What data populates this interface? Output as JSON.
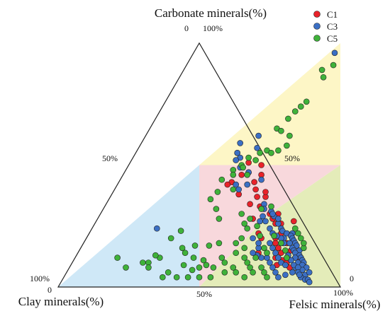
{
  "chart_data": {
    "type": "scatter",
    "subtype": "ternary",
    "axes": {
      "top": {
        "label": "Carbonate minerals(%)",
        "max_tick": "100%",
        "min_tick": "0"
      },
      "left": {
        "label": "Clay minerals(%)",
        "max_tick": "100%",
        "min_tick": "0"
      },
      "right": {
        "label": "Felsic minerals(%)",
        "max_tick": "100%",
        "min_tick": "0"
      }
    },
    "edge_ticks": {
      "left_mid": "50%",
      "right_mid": "50%",
      "bottom_mid": "50%"
    },
    "regions": [
      {
        "id": "carbonate-zone",
        "color": "#fdf6c6"
      },
      {
        "id": "clay-zone",
        "color": "#cfe8f7"
      },
      {
        "id": "mixed-zone",
        "color": "#f8d8dc"
      },
      {
        "id": "felsic-zone",
        "color": "#e4ecb9"
      }
    ],
    "legend": {
      "placement": "top-right",
      "entries": [
        {
          "name": "C1",
          "color": "#e8222a"
        },
        {
          "name": "C3",
          "color": "#3b6fc4"
        },
        {
          "name": "C5",
          "color": "#3fb23a"
        }
      ]
    },
    "grid": false,
    "value_note": "each point: [felsic %, carbonate %] (clay = 100 - felsic - carbonate)",
    "series": [
      {
        "name": "C1",
        "points": [
          [
            42,
            51
          ],
          [
            47,
            50
          ],
          [
            48,
            43
          ],
          [
            40,
            43
          ],
          [
            39,
            42
          ],
          [
            45,
            38
          ],
          [
            50,
            40
          ],
          [
            52,
            37
          ],
          [
            51,
            34
          ],
          [
            55,
            37
          ],
          [
            60,
            30
          ],
          [
            63,
            30
          ],
          [
            62,
            28
          ],
          [
            64,
            26
          ],
          [
            55,
            28
          ],
          [
            66,
            26
          ],
          [
            70,
            27
          ],
          [
            73,
            20
          ],
          [
            72,
            18
          ],
          [
            75,
            15
          ],
          [
            76,
            17
          ],
          [
            78,
            13
          ],
          [
            72,
            14
          ],
          [
            74,
            11
          ],
          [
            79,
            12
          ],
          [
            76,
            10
          ],
          [
            80,
            12
          ],
          [
            67,
            20
          ],
          [
            44,
            47
          ],
          [
            42,
            46
          ],
          [
            60,
            22
          ],
          [
            62,
            20
          ],
          [
            68,
            22
          ],
          [
            55,
            33
          ],
          [
            54,
            39
          ],
          [
            73,
            9
          ],
          [
            70,
            16
          ],
          [
            36,
            55
          ],
          [
            68,
            18
          ],
          [
            78,
            8
          ],
          [
            49,
            46
          ],
          [
            64,
            14
          ],
          [
            71,
            12
          ]
        ]
      },
      {
        "name": "C3",
        "points": [
          [
            50,
            96
          ],
          [
            40,
            62
          ],
          [
            35,
            59
          ],
          [
            42,
            57
          ],
          [
            38,
            53
          ],
          [
            40,
            49
          ],
          [
            44,
            47
          ],
          [
            42,
            42
          ],
          [
            50,
            44
          ],
          [
            56,
            34
          ],
          [
            57,
            32
          ],
          [
            60,
            31
          ],
          [
            62,
            29
          ],
          [
            58,
            27
          ],
          [
            65,
            26
          ],
          [
            67,
            24
          ],
          [
            68,
            23
          ],
          [
            70,
            22
          ],
          [
            72,
            22
          ],
          [
            72,
            21
          ],
          [
            73,
            20
          ],
          [
            74,
            19
          ],
          [
            75,
            18
          ],
          [
            76,
            17
          ],
          [
            75,
            16
          ],
          [
            76,
            15
          ],
          [
            78,
            15
          ],
          [
            77,
            14
          ],
          [
            79,
            13
          ],
          [
            80,
            12
          ],
          [
            78,
            12
          ],
          [
            81,
            11
          ],
          [
            82,
            10
          ],
          [
            80,
            10
          ],
          [
            82,
            9
          ],
          [
            84,
            8
          ],
          [
            83,
            7
          ],
          [
            85,
            5
          ],
          [
            84,
            4
          ],
          [
            86,
            3
          ],
          [
            87,
            3
          ],
          [
            88,
            2
          ],
          [
            86,
            6
          ],
          [
            80,
            8
          ],
          [
            78,
            5
          ],
          [
            76,
            4
          ],
          [
            74,
            6
          ],
          [
            72,
            8
          ],
          [
            70,
            10
          ],
          [
            68,
            12
          ],
          [
            66,
            12
          ],
          [
            64,
            13
          ],
          [
            62,
            14
          ],
          [
            63,
            16
          ],
          [
            66,
            18
          ],
          [
            68,
            16
          ],
          [
            70,
            14
          ],
          [
            72,
            12
          ],
          [
            74,
            10
          ],
          [
            76,
            9
          ],
          [
            70,
            20
          ],
          [
            71,
            18
          ],
          [
            69,
            20
          ],
          [
            73,
            18
          ],
          [
            75,
            13
          ],
          [
            77,
            11
          ],
          [
            79,
            9
          ],
          [
            81,
            8
          ],
          [
            80,
            6
          ],
          [
            82,
            6
          ],
          [
            83,
            5
          ],
          [
            44,
            40
          ],
          [
            46,
            42
          ],
          [
            37,
            52
          ],
          [
            36,
            55
          ],
          [
            64,
            28
          ],
          [
            61,
            30
          ],
          [
            58,
            29
          ],
          [
            60,
            27
          ],
          [
            65,
            22
          ],
          [
            67,
            21
          ],
          [
            23,
            24
          ],
          [
            62,
            18
          ],
          [
            59,
            20
          ],
          [
            63,
            24
          ]
        ]
      },
      {
        "name": "C5",
        "points": [
          [
            52,
            91
          ],
          [
            49,
            89
          ],
          [
            51,
            86
          ],
          [
            50,
            76
          ],
          [
            49,
            74
          ],
          [
            48,
            72
          ],
          [
            47,
            69
          ],
          [
            45,
            65
          ],
          [
            47,
            64
          ],
          [
            51,
            62
          ],
          [
            52,
            58
          ],
          [
            50,
            56
          ],
          [
            46,
            56
          ],
          [
            44,
            55
          ],
          [
            48,
            55
          ],
          [
            41,
            53
          ],
          [
            44,
            52
          ],
          [
            40,
            50
          ],
          [
            38,
            48
          ],
          [
            44,
            46
          ],
          [
            42,
            40
          ],
          [
            36,
            44
          ],
          [
            36,
            36
          ],
          [
            40,
            32
          ],
          [
            50,
            30
          ],
          [
            54,
            28
          ],
          [
            58,
            25
          ],
          [
            61,
            21
          ],
          [
            55,
            20
          ],
          [
            54,
            18
          ],
          [
            48,
            18
          ],
          [
            45,
            17
          ],
          [
            40,
            17
          ],
          [
            38,
            14
          ],
          [
            36,
            16
          ],
          [
            30,
            12
          ],
          [
            28,
            13
          ],
          [
            27,
            10
          ],
          [
            25,
            10
          ],
          [
            15,
            12
          ],
          [
            20,
            8
          ],
          [
            28,
            8
          ],
          [
            36,
            6
          ],
          [
            35,
            4
          ],
          [
            40,
            4
          ],
          [
            44,
            4
          ],
          [
            48,
            4
          ],
          [
            52,
            4
          ],
          [
            56,
            6
          ],
          [
            58,
            8
          ],
          [
            60,
            6
          ],
          [
            64,
            4
          ],
          [
            66,
            6
          ],
          [
            60,
            12
          ],
          [
            62,
            10
          ],
          [
            64,
            8
          ],
          [
            58,
            16
          ],
          [
            56,
            14
          ],
          [
            52,
            12
          ],
          [
            46,
            11
          ],
          [
            42,
            12
          ],
          [
            40,
            9
          ],
          [
            48,
            9
          ],
          [
            51,
            8
          ],
          [
            54,
            10
          ],
          [
            46,
            8
          ],
          [
            44,
            7
          ],
          [
            68,
            8
          ],
          [
            70,
            6
          ],
          [
            72,
            4
          ],
          [
            75,
            12
          ],
          [
            73,
            15
          ],
          [
            70,
            18
          ],
          [
            66,
            21
          ],
          [
            65,
            16
          ],
          [
            67,
            14
          ],
          [
            64,
            12
          ],
          [
            79,
            16
          ],
          [
            78,
            18
          ],
          [
            76,
            20
          ],
          [
            74,
            22
          ],
          [
            72,
            24
          ],
          [
            30,
            20
          ],
          [
            32,
            23
          ],
          [
            43,
            28
          ],
          [
            56,
            32
          ],
          [
            59,
            33
          ],
          [
            37,
            39
          ],
          [
            39,
            46
          ],
          [
            41,
            49
          ],
          [
            53,
            26
          ],
          [
            55,
            24
          ]
        ]
      }
    ]
  }
}
